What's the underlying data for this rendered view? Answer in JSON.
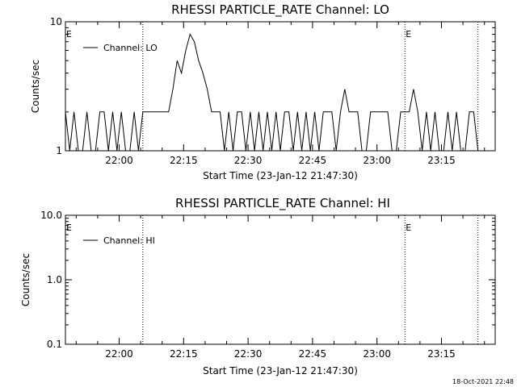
{
  "footer": {
    "timestamp": "18-Oct-2021 22:48"
  },
  "chart_data": [
    {
      "type": "line",
      "title": "RHESSI PARTICLE_RATE Channel: LO",
      "xlabel": "Start Time (23-Jan-12 21:47:30)",
      "ylabel": "Counts/sec",
      "yscale": "log",
      "ylim": [
        1,
        10
      ],
      "ytick_labels": [
        "1",
        "10"
      ],
      "xlim": [
        "21:47:30",
        "23:27:30"
      ],
      "xtick_labels": [
        "22:00",
        "22:15",
        "22:30",
        "22:45",
        "23:00",
        "23:15"
      ],
      "flags": [
        {
          "time": "21:47:30",
          "label": "E"
        },
        {
          "time": "23:06:30",
          "label": "E"
        }
      ],
      "flag_lines": [
        "22:05:30",
        "23:06:30",
        "23:23:30"
      ],
      "grid": false,
      "legend_position": "top-left",
      "series": [
        {
          "name": "Channel: LO",
          "x_minutes": [
            0,
            1,
            2,
            3,
            4,
            5,
            6,
            7,
            8,
            9,
            10,
            11,
            12,
            13,
            14,
            15,
            16,
            17,
            18,
            19,
            20,
            21,
            22,
            23,
            24,
            25,
            26,
            27,
            28,
            29,
            30,
            31,
            32,
            33,
            34,
            35,
            36,
            37,
            38,
            39,
            40,
            41,
            42,
            43,
            44,
            45,
            46,
            47,
            48,
            49,
            50,
            51,
            52,
            53,
            54,
            55,
            56,
            57,
            58,
            59,
            60,
            61,
            62,
            63,
            64,
            65,
            66,
            67,
            68,
            69,
            70,
            71,
            72,
            73,
            74,
            75,
            76,
            77,
            78,
            79,
            80,
            81,
            82,
            83,
            84,
            85,
            86,
            87,
            88,
            89,
            90,
            91,
            92,
            93,
            94,
            95,
            96,
            97,
            98,
            99,
            100
          ],
          "values": [
            2,
            1,
            2,
            1,
            1,
            2,
            1,
            1,
            2,
            2,
            1,
            2,
            1,
            2,
            1,
            1,
            2,
            1,
            2,
            2,
            2,
            2,
            2,
            2,
            2,
            3,
            5,
            4,
            6,
            8,
            7,
            5,
            4,
            3,
            2,
            2,
            2,
            1,
            2,
            1,
            2,
            2,
            1,
            2,
            1,
            2,
            1,
            2,
            1,
            2,
            1,
            2,
            2,
            1,
            2,
            1,
            2,
            1,
            2,
            1,
            2,
            2,
            2,
            1,
            2,
            3,
            2,
            2,
            2,
            1,
            1,
            2,
            2,
            2,
            2,
            2,
            1,
            1,
            2,
            2,
            2,
            3,
            2,
            1,
            2,
            1,
            2,
            1,
            1,
            2,
            1,
            2,
            1,
            1,
            2,
            2,
            1,
            1,
            1,
            1,
            1
          ]
        }
      ]
    },
    {
      "type": "line",
      "title": "RHESSI PARTICLE_RATE Channel: HI",
      "xlabel": "Start Time (23-Jan-12 21:47:30)",
      "ylabel": "Counts/sec",
      "yscale": "log",
      "ylim": [
        0.1,
        10
      ],
      "ytick_labels": [
        "0.1",
        "1.0",
        "10.0"
      ],
      "xlim": [
        "21:47:30",
        "23:27:30"
      ],
      "xtick_labels": [
        "22:00",
        "22:15",
        "22:30",
        "22:45",
        "23:00",
        "23:15"
      ],
      "flags": [
        {
          "time": "21:47:30",
          "label": "E"
        },
        {
          "time": "23:06:30",
          "label": "E"
        }
      ],
      "flag_lines": [
        "22:05:30",
        "23:06:30",
        "23:23:30"
      ],
      "grid": false,
      "legend_position": "top-left",
      "series": [
        {
          "name": "Channel: HI",
          "x_minutes": [],
          "values": []
        }
      ]
    }
  ]
}
